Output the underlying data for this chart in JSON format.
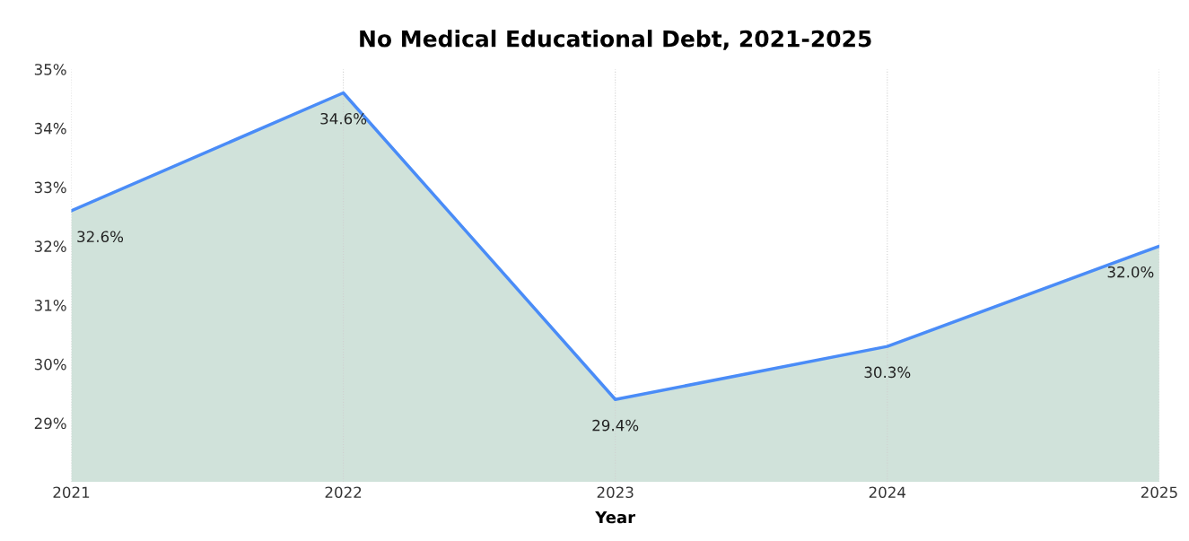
{
  "chart_data": {
    "type": "area",
    "title": "No Medical Educational Debt, 2021-2025",
    "xlabel": "Year",
    "categories": [
      "2021",
      "2022",
      "2023",
      "2024",
      "2025"
    ],
    "series": [
      {
        "color": "#4a8cf7",
        "values": [
          32.6,
          34.6,
          29.4,
          30.3,
          32.0
        ],
        "value_labels": [
          "32.6%",
          "34.6%",
          "29.4%",
          "30.3%",
          "32.0%"
        ]
      }
    ],
    "ylim": [
      28,
      35
    ],
    "yticks": [
      {
        "value": 29,
        "label": "29%"
      },
      {
        "value": 30,
        "label": "30%"
      },
      {
        "value": 31,
        "label": "31%"
      },
      {
        "value": 32,
        "label": "32%"
      },
      {
        "value": 33,
        "label": "33%"
      },
      {
        "value": 34,
        "label": "34%"
      },
      {
        "value": 35,
        "label": "35%"
      }
    ],
    "grid": "x",
    "legend": false
  }
}
